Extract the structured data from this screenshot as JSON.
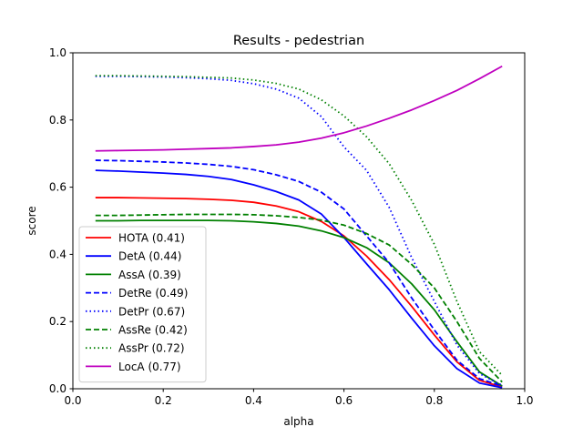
{
  "chart_data": {
    "type": "line",
    "title": "Results - pedestrian",
    "xlabel": "alpha",
    "ylabel": "score",
    "xlim": [
      0.0,
      1.0
    ],
    "ylim": [
      0.0,
      1.0
    ],
    "xticks": [
      "0.0",
      "0.2",
      "0.4",
      "0.6",
      "0.8",
      "1.0"
    ],
    "yticks": [
      "0.0",
      "0.2",
      "0.4",
      "0.6",
      "0.8",
      "1.0"
    ],
    "grid": false,
    "legend_position": "lower-left",
    "x": [
      0.05,
      0.1,
      0.15,
      0.2,
      0.25,
      0.3,
      0.35,
      0.4,
      0.45,
      0.5,
      0.55,
      0.6,
      0.65,
      0.7,
      0.75,
      0.8,
      0.85,
      0.9,
      0.95
    ],
    "series": [
      {
        "name": "HOTA (0.41)",
        "color": "#ff0000",
        "dash": "solid",
        "values": [
          0.569,
          0.569,
          0.568,
          0.567,
          0.566,
          0.564,
          0.561,
          0.555,
          0.544,
          0.527,
          0.498,
          0.455,
          0.395,
          0.325,
          0.245,
          0.16,
          0.08,
          0.025,
          0.005
        ]
      },
      {
        "name": "DetA (0.44)",
        "color": "#0000ff",
        "dash": "solid",
        "values": [
          0.65,
          0.648,
          0.645,
          0.642,
          0.638,
          0.632,
          0.623,
          0.607,
          0.587,
          0.562,
          0.52,
          0.45,
          0.372,
          0.295,
          0.21,
          0.128,
          0.06,
          0.017,
          0.003
        ]
      },
      {
        "name": "AssA (0.39)",
        "color": "#008000",
        "dash": "solid",
        "values": [
          0.5,
          0.5,
          0.501,
          0.501,
          0.501,
          0.501,
          0.5,
          0.497,
          0.492,
          0.484,
          0.47,
          0.45,
          0.42,
          0.375,
          0.312,
          0.235,
          0.14,
          0.05,
          0.008
        ]
      },
      {
        "name": "DetRe (0.49)",
        "color": "#0000ff",
        "dash": "dashed",
        "values": [
          0.68,
          0.679,
          0.677,
          0.675,
          0.672,
          0.668,
          0.662,
          0.652,
          0.637,
          0.617,
          0.585,
          0.535,
          0.455,
          0.375,
          0.27,
          0.175,
          0.085,
          0.03,
          0.008
        ]
      },
      {
        "name": "DetPr (0.67)",
        "color": "#0000ff",
        "dash": "dotted",
        "values": [
          0.93,
          0.93,
          0.929,
          0.928,
          0.926,
          0.923,
          0.918,
          0.908,
          0.892,
          0.865,
          0.81,
          0.72,
          0.65,
          0.54,
          0.39,
          0.26,
          0.13,
          0.045,
          0.01
        ]
      },
      {
        "name": "AssRe (0.42)",
        "color": "#008000",
        "dash": "dashed",
        "values": [
          0.516,
          0.516,
          0.517,
          0.518,
          0.519,
          0.519,
          0.519,
          0.518,
          0.515,
          0.51,
          0.502,
          0.487,
          0.462,
          0.428,
          0.37,
          0.3,
          0.2,
          0.09,
          0.02
        ]
      },
      {
        "name": "AssPr (0.72)",
        "color": "#008000",
        "dash": "dotted",
        "values": [
          0.932,
          0.932,
          0.931,
          0.93,
          0.929,
          0.927,
          0.925,
          0.919,
          0.909,
          0.892,
          0.86,
          0.812,
          0.75,
          0.67,
          0.56,
          0.43,
          0.26,
          0.11,
          0.04
        ]
      },
      {
        "name": "LocA (0.77)",
        "color": "#bf00bf",
        "dash": "solid",
        "values": [
          0.708,
          0.709,
          0.71,
          0.711,
          0.713,
          0.715,
          0.717,
          0.721,
          0.726,
          0.734,
          0.746,
          0.762,
          0.782,
          0.805,
          0.83,
          0.858,
          0.888,
          0.923,
          0.96
        ]
      }
    ]
  }
}
